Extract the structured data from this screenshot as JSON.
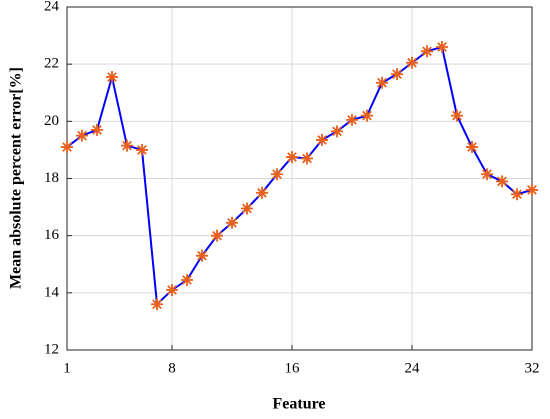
{
  "chart_data": {
    "type": "line",
    "xlabel": "Feature",
    "ylabel": "Mean absolute percent error[%]",
    "x": [
      1,
      2,
      3,
      4,
      5,
      6,
      7,
      8,
      9,
      10,
      11,
      12,
      13,
      14,
      15,
      16,
      17,
      18,
      19,
      20,
      21,
      22,
      23,
      24,
      25,
      26,
      27,
      28,
      29,
      30,
      31,
      32
    ],
    "values": [
      19.1,
      19.5,
      19.7,
      21.55,
      19.15,
      19.0,
      13.6,
      14.1,
      14.45,
      15.3,
      16.0,
      16.45,
      16.95,
      17.5,
      18.15,
      18.75,
      18.7,
      19.35,
      19.65,
      20.05,
      20.2,
      21.35,
      21.65,
      22.05,
      22.45,
      22.6,
      20.2,
      19.1,
      18.15,
      17.9,
      17.45,
      17.6
    ],
    "color": "#0000ff",
    "marker_color": "#e8601c",
    "xlim": [
      1,
      32
    ],
    "xticks": [
      1,
      8,
      16,
      24,
      32
    ],
    "ylim": [
      12,
      24
    ],
    "yticks": [
      12,
      14,
      16,
      18,
      20,
      22,
      24
    ],
    "grid": true
  }
}
